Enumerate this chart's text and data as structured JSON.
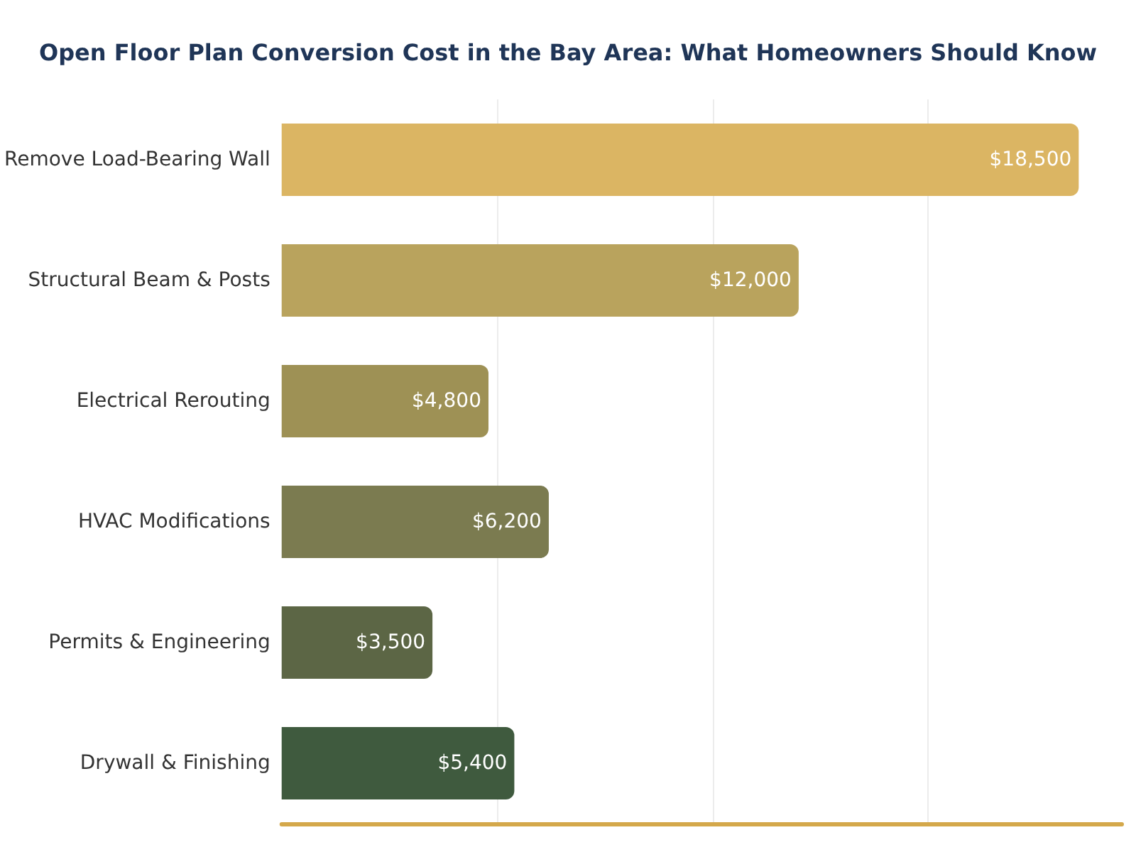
{
  "chart_data": {
    "type": "bar",
    "orientation": "horizontal",
    "title": "Open Floor Plan Conversion Cost in the Bay Area: What Homeowners Should Know",
    "categories": [
      "Remove Load-Bearing Wall",
      "Structural Beam & Posts",
      "Electrical Rerouting",
      "HVAC Modifications",
      "Permits & Engineering",
      "Drywall & Finishing"
    ],
    "values": [
      18500,
      12000,
      4800,
      6200,
      3500,
      5400
    ],
    "colors": [
      "#dbb563",
      "#b9a35d",
      "#9e9155",
      "#7b7b50",
      "#5c6645",
      "#3f5a3e"
    ],
    "value_labels": [
      "$18,500",
      "$12,000",
      "$4,800",
      "$6,200",
      "$3,500",
      "$5,400"
    ],
    "xlim": [
      0,
      19500
    ],
    "xticks": [
      {
        "value": 5000,
        "label": null
      },
      {
        "value": 10000,
        "label": null
      },
      {
        "value": 15000,
        "label": null
      }
    ],
    "tick_labels": "y",
    "grid": "x"
  }
}
